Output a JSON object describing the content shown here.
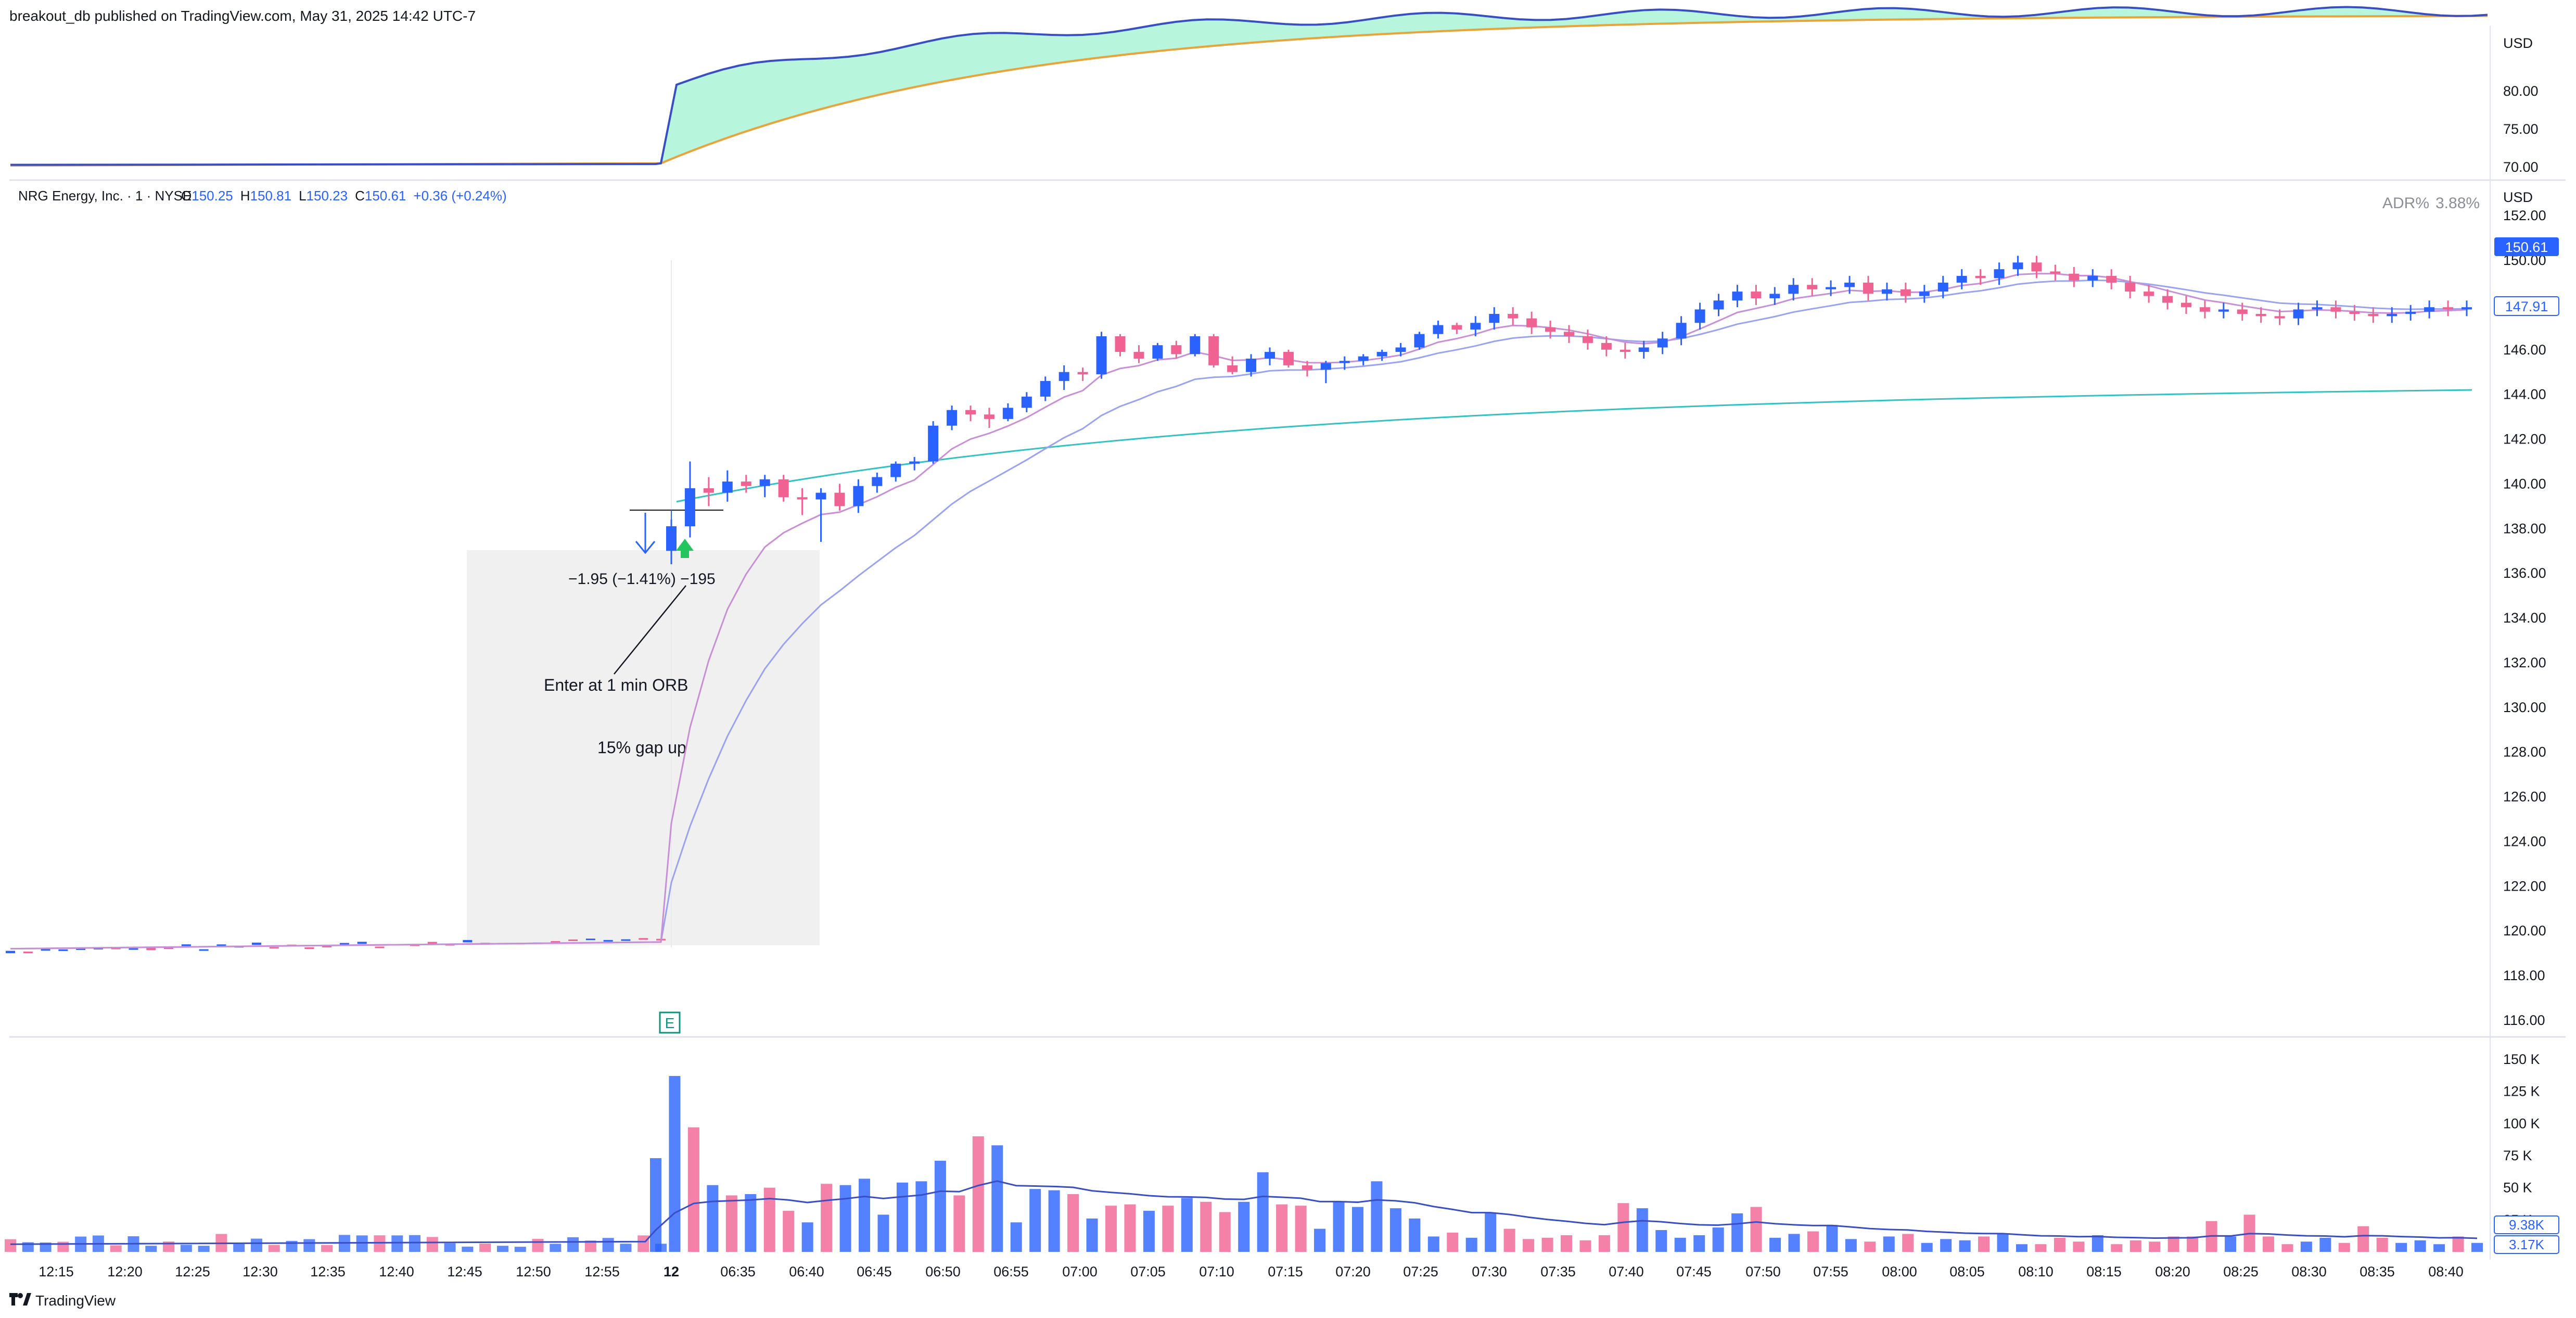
{
  "header": {
    "published": "breakout_db published on TradingView.com, May 31, 2025 14:42 UTC-7"
  },
  "indicator_pane": {
    "currency": "USD",
    "ticks": [
      "80.00",
      "75.00",
      "70.00"
    ],
    "tick_values": [
      80,
      75,
      70
    ],
    "colors": {
      "fast": "#3a4ec4",
      "slow": "#e8a33a",
      "fill": "#b8f5dd"
    }
  },
  "legend": {
    "symbol": "NRG Energy, Inc. · 1 · NYSE",
    "o_label": "O",
    "o": "150.25",
    "h_label": "H",
    "h": "150.81",
    "l_label": "L",
    "l": "150.23",
    "c_label": "C",
    "c": "150.61",
    "change": "+0.36 (+0.24%)",
    "adr_label": "ADR%",
    "adr_value": "3.88%"
  },
  "price_pane": {
    "currency": "USD",
    "ticks": [
      "152.00",
      "150.00",
      "148.00",
      "146.00",
      "144.00",
      "142.00",
      "140.00",
      "138.00",
      "136.00",
      "134.00",
      "132.00",
      "130.00",
      "128.00",
      "126.00",
      "124.00",
      "122.00",
      "120.00",
      "118.00",
      "116.00"
    ],
    "tick_values": [
      152,
      150,
      148,
      146,
      144,
      142,
      140,
      138,
      136,
      134,
      132,
      130,
      128,
      126,
      124,
      122,
      120,
      118,
      116
    ],
    "last_price_label": "150.61",
    "ma_price_label": "147.91",
    "colors": {
      "up": "#2962ff",
      "down": "#f06292",
      "ma_fast": "#c98fd6",
      "ma_slow": "#9aa3f0",
      "ma_long": "#33c2c2"
    }
  },
  "annotations": {
    "measure": "−1.95 (−1.41%) −195",
    "enter": "Enter at 1 min ORB",
    "gap": "15% gap up",
    "earnings_badge": "E"
  },
  "volume_pane": {
    "ticks": [
      "150 K",
      "125 K",
      "100 K",
      "75 K",
      "50 K",
      "25 K"
    ],
    "tick_values": [
      150,
      125,
      100,
      75,
      50,
      25
    ],
    "label_blue": "9.38K",
    "label_blue2": "3.17K"
  },
  "time_axis": {
    "labels": [
      "12:15",
      "12:20",
      "12:25",
      "12:30",
      "12:35",
      "12:40",
      "12:45",
      "12:50",
      "12:55",
      "12",
      "06:35",
      "06:40",
      "06:45",
      "06:50",
      "06:55",
      "07:00",
      "07:05",
      "07:10",
      "07:15",
      "07:20",
      "07:25",
      "07:30",
      "07:35",
      "07:40",
      "07:45",
      "07:50",
      "07:55",
      "08:00",
      "08:05",
      "08:10",
      "08:15",
      "08:20",
      "08:25",
      "08:30",
      "08:35",
      "08:40"
    ]
  },
  "footer": {
    "brand": "TradingView"
  },
  "chart_data": {
    "type": "candlestick",
    "title": "",
    "y_range": [
      116,
      152
    ],
    "volume_range": [
      0,
      150000
    ],
    "key_prices": {
      "premarket_close": 119.5,
      "orb_entry": 138.4,
      "high": 149.9,
      "last": 150.61,
      "ma_last": 147.91
    },
    "ohlc_after_open": [
      [
        137.0,
        138.4,
        136.4,
        138.1
      ],
      [
        138.1,
        141.0,
        137.6,
        139.8
      ],
      [
        139.8,
        140.3,
        139.0,
        139.6
      ],
      [
        139.6,
        140.6,
        139.2,
        140.1
      ],
      [
        140.1,
        140.4,
        139.6,
        139.9
      ],
      [
        139.9,
        140.4,
        139.4,
        140.2
      ],
      [
        140.2,
        140.4,
        139.2,
        139.4
      ],
      [
        139.4,
        139.8,
        138.6,
        139.3
      ],
      [
        139.3,
        139.8,
        137.4,
        139.6
      ],
      [
        139.6,
        140.0,
        138.8,
        139.0
      ],
      [
        139.0,
        140.2,
        138.7,
        139.9
      ],
      [
        139.9,
        140.5,
        139.6,
        140.3
      ],
      [
        140.3,
        141.0,
        140.1,
        140.9
      ],
      [
        140.9,
        141.2,
        140.6,
        141.0
      ],
      [
        141.0,
        142.8,
        140.9,
        142.6
      ],
      [
        142.6,
        143.5,
        142.4,
        143.3
      ],
      [
        143.3,
        143.5,
        142.8,
        143.1
      ],
      [
        143.1,
        143.4,
        142.5,
        142.9
      ],
      [
        142.9,
        143.6,
        142.8,
        143.4
      ],
      [
        143.4,
        144.1,
        143.2,
        143.9
      ],
      [
        143.9,
        144.8,
        143.7,
        144.6
      ],
      [
        144.6,
        145.3,
        144.2,
        145.0
      ],
      [
        145.0,
        145.2,
        144.6,
        144.9
      ],
      [
        144.9,
        146.8,
        144.7,
        146.6
      ],
      [
        146.6,
        146.7,
        145.7,
        145.9
      ],
      [
        145.9,
        146.2,
        145.4,
        145.6
      ],
      [
        145.6,
        146.3,
        145.5,
        146.2
      ],
      [
        146.2,
        146.4,
        145.6,
        145.8
      ],
      [
        145.8,
        146.7,
        145.7,
        146.6
      ],
      [
        146.6,
        146.7,
        145.2,
        145.3
      ],
      [
        145.3,
        145.7,
        144.9,
        145.0
      ],
      [
        145.0,
        145.8,
        144.8,
        145.6
      ],
      [
        145.6,
        146.1,
        145.3,
        145.9
      ],
      [
        145.9,
        146.0,
        145.2,
        145.3
      ],
      [
        145.3,
        145.5,
        144.8,
        145.1
      ],
      [
        145.1,
        145.5,
        144.5,
        145.4
      ],
      [
        145.4,
        145.7,
        145.1,
        145.5
      ],
      [
        145.5,
        145.8,
        145.3,
        145.7
      ],
      [
        145.7,
        146.0,
        145.5,
        145.9
      ],
      [
        145.9,
        146.3,
        145.7,
        146.1
      ],
      [
        146.1,
        146.8,
        146.0,
        146.7
      ],
      [
        146.7,
        147.3,
        146.5,
        147.1
      ],
      [
        147.1,
        147.2,
        146.7,
        146.9
      ]
    ]
  }
}
